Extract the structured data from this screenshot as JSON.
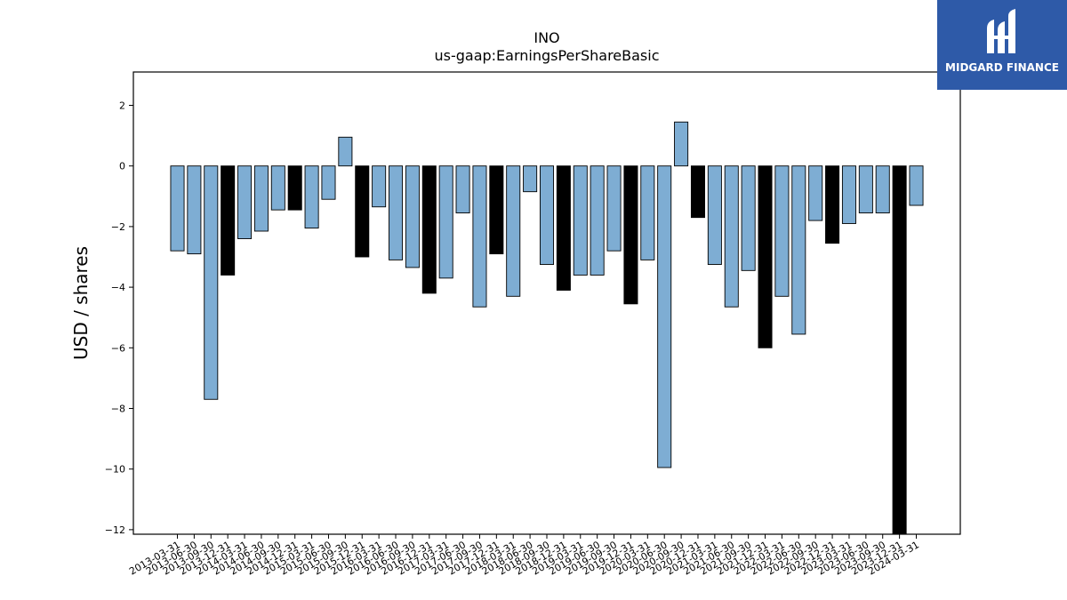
{
  "chart_data": {
    "type": "bar",
    "title": "INO",
    "subtitle": "us-gaap:EarningsPerShareBasic",
    "ylabel": "USD / shares",
    "xlabel": "",
    "ylim": [
      -12.15,
      3.1
    ],
    "yticks": [
      2,
      0,
      -2,
      -4,
      -6,
      -8,
      -10,
      -12
    ],
    "ytick_labels": [
      "2",
      "0",
      "−2",
      "−4",
      "−6",
      "−8",
      "−10",
      "−12"
    ],
    "categories": [
      "2013-03-31",
      "2013-06-30",
      "2013-09-30",
      "2013-12-31",
      "2014-03-31",
      "2014-06-30",
      "2014-09-30",
      "2014-12-31",
      "2015-03-31",
      "2015-06-30",
      "2015-09-30",
      "2015-12-31",
      "2016-03-31",
      "2016-06-30",
      "2016-09-30",
      "2016-12-31",
      "2017-03-31",
      "2017-06-30",
      "2017-09-30",
      "2017-12-31",
      "2018-03-31",
      "2018-06-30",
      "2018-09-30",
      "2018-12-31",
      "2019-03-31",
      "2019-06-30",
      "2019-09-30",
      "2019-12-31",
      "2020-03-31",
      "2020-06-30",
      "2020-09-30",
      "2020-12-31",
      "2021-03-31",
      "2021-06-30",
      "2021-09-30",
      "2021-12-31",
      "2022-03-31",
      "2022-06-30",
      "2022-09-30",
      "2022-12-31",
      "2023-03-31",
      "2023-06-30",
      "2023-09-30",
      "2023-12-31",
      "2024-03-31"
    ],
    "values": [
      -2.8,
      -2.9,
      -7.7,
      -3.6,
      -2.4,
      -2.15,
      -1.45,
      -1.45,
      -2.05,
      -1.1,
      0.95,
      -3.0,
      -1.35,
      -3.1,
      -3.35,
      -4.2,
      -3.7,
      -1.55,
      -4.65,
      -2.9,
      -4.3,
      -0.85,
      -3.25,
      -4.1,
      -3.6,
      -3.6,
      -2.8,
      -4.55,
      -3.1,
      -9.95,
      1.45,
      -1.7,
      -3.25,
      -4.65,
      -3.45,
      -6.0,
      -4.3,
      -5.55,
      -1.8,
      -2.55,
      -1.9,
      -1.55,
      -1.55,
      -12.15,
      -1.3
    ],
    "highlight": [
      false,
      false,
      false,
      true,
      false,
      false,
      false,
      true,
      false,
      false,
      false,
      true,
      false,
      false,
      false,
      true,
      false,
      false,
      false,
      true,
      false,
      false,
      false,
      true,
      false,
      false,
      false,
      true,
      false,
      false,
      false,
      true,
      false,
      false,
      false,
      true,
      false,
      false,
      false,
      true,
      false,
      false,
      false,
      true,
      false
    ],
    "colors": {
      "normal": "#7eadd3",
      "highlight": "#000000",
      "edge": "#000000"
    },
    "grid": false
  },
  "logo": {
    "text": "MIDGARD FINANCE",
    "bg": "#2e5aa8"
  }
}
